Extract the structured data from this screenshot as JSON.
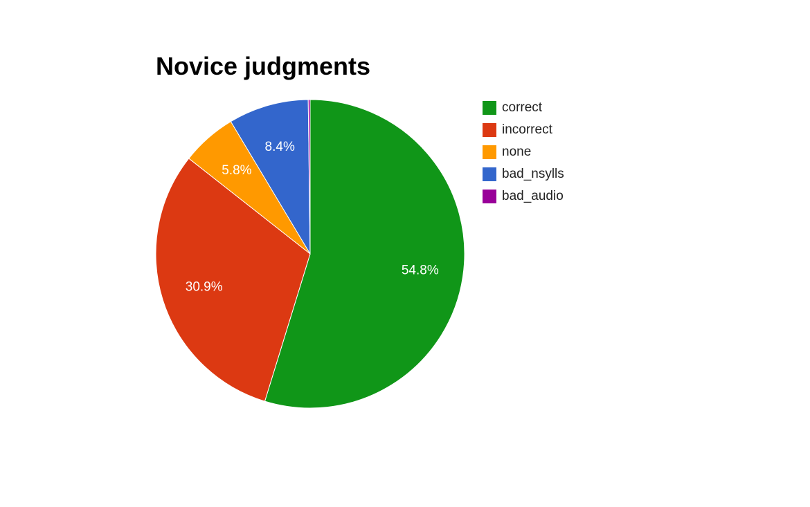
{
  "chart_data": {
    "type": "pie",
    "title": "Novice judgments",
    "categories": [
      "correct",
      "incorrect",
      "none",
      "bad_nsylls",
      "bad_audio"
    ],
    "values": [
      54.8,
      30.9,
      5.8,
      8.4,
      0.2
    ],
    "data_labels": [
      "54.8%",
      "30.9%",
      "5.8%",
      "8.4%",
      ""
    ],
    "colors": [
      "#109618",
      "#DC3912",
      "#FF9900",
      "#3366CC",
      "#990099"
    ],
    "legend_position": "right",
    "start_angle": "top",
    "direction": "clockwise"
  }
}
